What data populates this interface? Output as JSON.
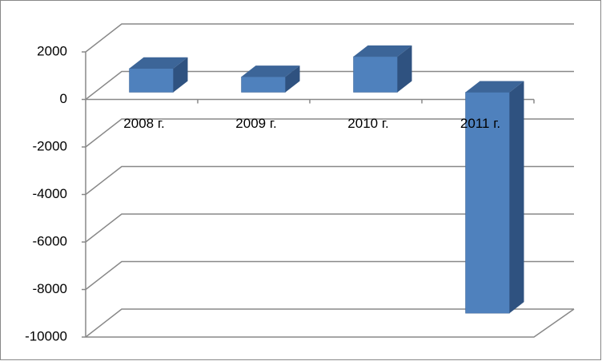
{
  "chart_data": {
    "type": "bar3d",
    "categories": [
      "2008 г.",
      "2009 г.",
      "2010 г.",
      "2011 г."
    ],
    "values": [
      1000,
      650,
      1500,
      -9300
    ],
    "color": "#4f81bd",
    "ylim": [
      -10000,
      2000
    ],
    "yticks": [
      -10000,
      -8000,
      -6000,
      -4000,
      -2000,
      0,
      2000
    ],
    "grid": true
  }
}
